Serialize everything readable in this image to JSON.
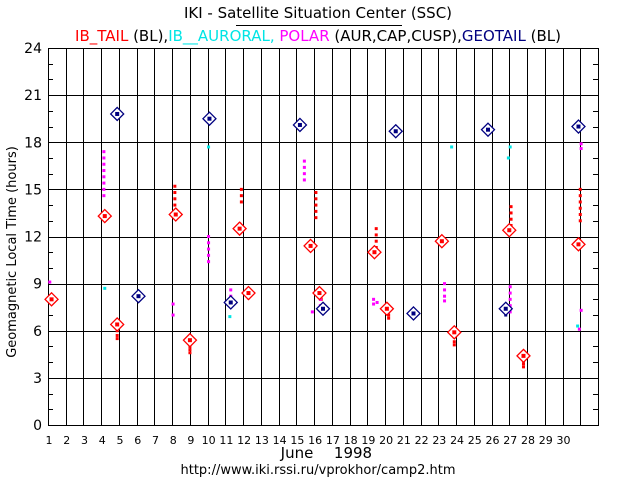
{
  "title": "IKI - Satellite Situation Center (SSC)",
  "legend": {
    "items": [
      {
        "name": "IB_TAIL",
        "color": "#ff0000",
        "suffix": " (BL),"
      },
      {
        "name": "IB__AURORAL,",
        "color": "#00e5e5",
        "suffix": " "
      },
      {
        "name": "POLAR",
        "color": "#ff00ff",
        "suffix": " (AUR,CAP,CUSP),"
      },
      {
        "name": "GEOTAIL",
        "color": "#000080",
        "suffix": " (BL)"
      }
    ]
  },
  "footer_url": "http://www.iki.rssi.ru/vprokhor/camp2.htm",
  "chart_data": {
    "type": "scatter",
    "xlabel": "June 1998",
    "xlabel_month": "June",
    "xlabel_year": "1998",
    "ylabel": "Geomagnetic Local Time (hours)",
    "xlim": [
      1,
      32
    ],
    "ylim": [
      0,
      24
    ],
    "x_ticks": [
      1,
      2,
      3,
      4,
      5,
      6,
      7,
      8,
      9,
      10,
      11,
      12,
      13,
      14,
      15,
      16,
      17,
      18,
      19,
      20,
      21,
      22,
      23,
      24,
      25,
      26,
      27,
      28,
      29,
      30
    ],
    "y_ticks": [
      0,
      3,
      6,
      9,
      12,
      15,
      18,
      21,
      24
    ],
    "series": [
      {
        "name": "IB_TAIL",
        "color": "#ff0000",
        "points": [
          {
            "x": 4.15,
            "y": 13.5
          },
          {
            "x": 4.15,
            "y": 13.3
          },
          {
            "x": 4.9,
            "y": 6.0
          },
          {
            "x": 4.9,
            "y": 5.7
          },
          {
            "x": 4.9,
            "y": 5.5
          },
          {
            "x": 8.15,
            "y": 15.2
          },
          {
            "x": 8.15,
            "y": 14.8
          },
          {
            "x": 8.15,
            "y": 14.4
          },
          {
            "x": 8.15,
            "y": 14.0
          },
          {
            "x": 8.15,
            "y": 13.6
          },
          {
            "x": 9.0,
            "y": 5.0
          },
          {
            "x": 9.0,
            "y": 4.8
          },
          {
            "x": 9.0,
            "y": 4.6
          },
          {
            "x": 11.9,
            "y": 15.0
          },
          {
            "x": 11.9,
            "y": 14.6
          },
          {
            "x": 11.9,
            "y": 14.2
          },
          {
            "x": 11.8,
            "y": 12.8
          },
          {
            "x": 11.8,
            "y": 12.5
          },
          {
            "x": 12.3,
            "y": 8.3
          },
          {
            "x": 12.3,
            "y": 8.1
          },
          {
            "x": 16.1,
            "y": 14.8
          },
          {
            "x": 16.1,
            "y": 14.4
          },
          {
            "x": 16.1,
            "y": 14.0
          },
          {
            "x": 16.1,
            "y": 13.6
          },
          {
            "x": 16.1,
            "y": 13.2
          },
          {
            "x": 15.8,
            "y": 11.5
          },
          {
            "x": 16.4,
            "y": 8.2
          },
          {
            "x": 16.4,
            "y": 8.0
          },
          {
            "x": 19.5,
            "y": 12.5
          },
          {
            "x": 19.5,
            "y": 12.1
          },
          {
            "x": 19.5,
            "y": 11.7
          },
          {
            "x": 19.5,
            "y": 11.3
          },
          {
            "x": 20.2,
            "y": 7.0
          },
          {
            "x": 20.2,
            "y": 6.8
          },
          {
            "x": 23.2,
            "y": 11.8
          },
          {
            "x": 23.9,
            "y": 5.6
          },
          {
            "x": 23.9,
            "y": 5.3
          },
          {
            "x": 23.9,
            "y": 5.1
          },
          {
            "x": 27.1,
            "y": 13.9
          },
          {
            "x": 27.1,
            "y": 13.5
          },
          {
            "x": 27.1,
            "y": 13.1
          },
          {
            "x": 27.1,
            "y": 12.7
          },
          {
            "x": 27.8,
            "y": 4.1
          },
          {
            "x": 27.8,
            "y": 3.9
          },
          {
            "x": 27.8,
            "y": 3.7
          },
          {
            "x": 31.0,
            "y": 15.0
          },
          {
            "x": 31.0,
            "y": 14.6
          },
          {
            "x": 31.0,
            "y": 14.2
          },
          {
            "x": 31.0,
            "y": 13.8
          },
          {
            "x": 31.0,
            "y": 13.4
          },
          {
            "x": 31.0,
            "y": 13.0
          },
          {
            "x": 30.9,
            "y": 11.8
          },
          {
            "x": 1.2,
            "y": 8.1
          }
        ]
      },
      {
        "name": "IB_AURORAL",
        "color": "#00e5e5",
        "points": [
          {
            "x": 4.2,
            "y": 8.7
          },
          {
            "x": 10.05,
            "y": 17.7
          },
          {
            "x": 11.25,
            "y": 6.9
          },
          {
            "x": 23.75,
            "y": 17.7
          },
          {
            "x": 27.05,
            "y": 17.7
          },
          {
            "x": 26.95,
            "y": 17.0
          },
          {
            "x": 30.85,
            "y": 6.3
          },
          {
            "x": 6.1,
            "y": 8.5
          }
        ]
      },
      {
        "name": "POLAR",
        "color": "#ff00ff",
        "points": [
          {
            "x": 4.15,
            "y": 17.4
          },
          {
            "x": 4.15,
            "y": 17.0
          },
          {
            "x": 4.15,
            "y": 16.6
          },
          {
            "x": 4.15,
            "y": 16.2
          },
          {
            "x": 4.15,
            "y": 15.8
          },
          {
            "x": 4.15,
            "y": 15.4
          },
          {
            "x": 4.15,
            "y": 15.0
          },
          {
            "x": 4.15,
            "y": 14.6
          },
          {
            "x": 8.05,
            "y": 7.7
          },
          {
            "x": 8.05,
            "y": 7.0
          },
          {
            "x": 10.05,
            "y": 12.0
          },
          {
            "x": 10.05,
            "y": 11.6
          },
          {
            "x": 10.05,
            "y": 11.2
          },
          {
            "x": 10.05,
            "y": 10.8
          },
          {
            "x": 10.05,
            "y": 10.4
          },
          {
            "x": 11.3,
            "y": 8.6
          },
          {
            "x": 11.3,
            "y": 8.2
          },
          {
            "x": 15.45,
            "y": 16.8
          },
          {
            "x": 15.45,
            "y": 16.4
          },
          {
            "x": 15.45,
            "y": 16.0
          },
          {
            "x": 15.45,
            "y": 15.6
          },
          {
            "x": 15.9,
            "y": 7.2
          },
          {
            "x": 16.35,
            "y": 8.0
          },
          {
            "x": 16.35,
            "y": 7.6
          },
          {
            "x": 19.35,
            "y": 8.0
          },
          {
            "x": 19.35,
            "y": 7.7
          },
          {
            "x": 19.55,
            "y": 7.8
          },
          {
            "x": 23.35,
            "y": 9.0
          },
          {
            "x": 23.35,
            "y": 8.6
          },
          {
            "x": 23.35,
            "y": 8.2
          },
          {
            "x": 23.35,
            "y": 7.9
          },
          {
            "x": 27.05,
            "y": 8.8
          },
          {
            "x": 27.05,
            "y": 8.4
          },
          {
            "x": 27.05,
            "y": 8.0
          },
          {
            "x": 27.05,
            "y": 7.6
          },
          {
            "x": 27.05,
            "y": 7.2
          },
          {
            "x": 31.05,
            "y": 17.9
          },
          {
            "x": 31.05,
            "y": 17.6
          },
          {
            "x": 31.05,
            "y": 7.3
          },
          {
            "x": 30.95,
            "y": 6.1
          },
          {
            "x": 1.1,
            "y": 9.1
          }
        ]
      },
      {
        "name": "GEOTAIL",
        "color": "#000080",
        "points": [
          {
            "x": 26.8,
            "y": 7.6
          },
          {
            "x": 26.8,
            "y": 7.3
          },
          {
            "x": 26.8,
            "y": 7.0
          }
        ]
      }
    ],
    "markers": [
      {
        "series": "IB_TAIL",
        "color": "#ff0000",
        "x": 1.2,
        "y": 8.0
      },
      {
        "series": "IB_TAIL",
        "color": "#ff0000",
        "x": 4.2,
        "y": 13.3
      },
      {
        "series": "IB_TAIL",
        "color": "#ff0000",
        "x": 4.9,
        "y": 6.4
      },
      {
        "series": "IB_TAIL",
        "color": "#ff0000",
        "x": 8.2,
        "y": 13.4
      },
      {
        "series": "IB_TAIL",
        "color": "#ff0000",
        "x": 9.0,
        "y": 5.4
      },
      {
        "series": "IB_TAIL",
        "color": "#ff0000",
        "x": 11.8,
        "y": 12.5
      },
      {
        "series": "IB_TAIL",
        "color": "#ff0000",
        "x": 12.3,
        "y": 8.4
      },
      {
        "series": "IB_TAIL",
        "color": "#ff0000",
        "x": 15.8,
        "y": 11.4
      },
      {
        "series": "IB_TAIL",
        "color": "#ff0000",
        "x": 16.3,
        "y": 8.4
      },
      {
        "series": "IB_TAIL",
        "color": "#ff0000",
        "x": 19.4,
        "y": 11.0
      },
      {
        "series": "IB_TAIL",
        "color": "#ff0000",
        "x": 20.1,
        "y": 7.4
      },
      {
        "series": "IB_TAIL",
        "color": "#ff0000",
        "x": 23.2,
        "y": 11.7
      },
      {
        "series": "IB_TAIL",
        "color": "#ff0000",
        "x": 23.9,
        "y": 5.9
      },
      {
        "series": "IB_TAIL",
        "color": "#ff0000",
        "x": 27.0,
        "y": 12.4
      },
      {
        "series": "IB_TAIL",
        "color": "#ff0000",
        "x": 27.8,
        "y": 4.4
      },
      {
        "series": "IB_TAIL",
        "color": "#ff0000",
        "x": 30.9,
        "y": 11.5
      },
      {
        "series": "GEOTAIL",
        "color": "#000080",
        "x": 4.9,
        "y": 19.8
      },
      {
        "series": "GEOTAIL",
        "color": "#000080",
        "x": 6.1,
        "y": 8.2
      },
      {
        "series": "GEOTAIL",
        "color": "#000080",
        "x": 10.1,
        "y": 19.5
      },
      {
        "series": "GEOTAIL",
        "color": "#000080",
        "x": 11.3,
        "y": 7.8
      },
      {
        "series": "GEOTAIL",
        "color": "#000080",
        "x": 15.2,
        "y": 19.1
      },
      {
        "series": "GEOTAIL",
        "color": "#000080",
        "x": 16.5,
        "y": 7.4
      },
      {
        "series": "GEOTAIL",
        "color": "#000080",
        "x": 20.6,
        "y": 18.7
      },
      {
        "series": "GEOTAIL",
        "color": "#000080",
        "x": 21.6,
        "y": 7.1
      },
      {
        "series": "GEOTAIL",
        "color": "#000080",
        "x": 25.8,
        "y": 18.8
      },
      {
        "series": "GEOTAIL",
        "color": "#000080",
        "x": 26.8,
        "y": 7.4
      },
      {
        "series": "GEOTAIL",
        "color": "#000080",
        "x": 30.9,
        "y": 19.0
      }
    ]
  }
}
